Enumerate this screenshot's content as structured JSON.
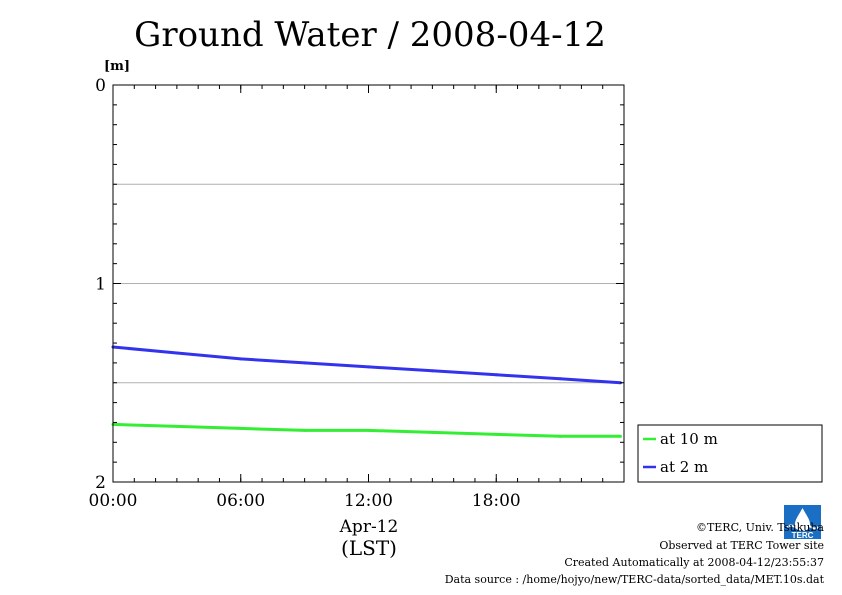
{
  "chart_data": {
    "type": "line",
    "title": "Ground Water / 2008-04-12",
    "ylabel_unit": "[m]",
    "y_inverted": true,
    "ylim": [
      0,
      2
    ],
    "yticks": [
      "0",
      "1",
      "2"
    ],
    "y_grid": [
      0.5,
      1.0,
      1.5
    ],
    "xlim": [
      "2008-04-12 00:00",
      "2008-04-13 00:00"
    ],
    "xticks": [
      {
        "x": "2008-04-12 00:00",
        "label": "00:00"
      },
      {
        "x": "2008-04-12 06:00",
        "label": "06:00"
      },
      {
        "x": "2008-04-12 12:00",
        "label": "12:00"
      },
      {
        "x": "2008-04-12 18:00",
        "label": "18:00"
      }
    ],
    "xdate_label": "Apr-12",
    "xlabel": "(LST)",
    "legend_position": "right",
    "series": [
      {
        "name": "at 10 m",
        "color": "#33ee33",
        "x": [
          "2008-04-12 00:00",
          "2008-04-12 03:00",
          "2008-04-12 06:00",
          "2008-04-12 09:00",
          "2008-04-12 12:00",
          "2008-04-12 15:00",
          "2008-04-12 18:00",
          "2008-04-12 21:00",
          "2008-04-12 23:50"
        ],
        "values": [
          1.71,
          1.72,
          1.73,
          1.74,
          1.74,
          1.75,
          1.76,
          1.77,
          1.77
        ]
      },
      {
        "name": "at 2 m",
        "color": "#3333ee",
        "x": [
          "2008-04-12 00:00",
          "2008-04-12 03:00",
          "2008-04-12 06:00",
          "2008-04-12 09:00",
          "2008-04-12 12:00",
          "2008-04-12 15:00",
          "2008-04-12 18:00",
          "2008-04-12 21:00",
          "2008-04-12 23:50"
        ],
        "values": [
          1.32,
          1.35,
          1.38,
          1.4,
          1.42,
          1.44,
          1.46,
          1.48,
          1.5
        ]
      }
    ]
  },
  "footer": {
    "copyright": "©TERC, Univ. Tsukuba",
    "observed": "Observed at TERC Tower site",
    "created": "Created Automatically at 2008-04-12/23:55:37",
    "source": "Data source : /home/hojyo/new/TERC-data/sorted_data/MET.10s.dat"
  },
  "logo": {
    "icon": "terc-logo",
    "text": "TERC",
    "color": "#1a6fc4"
  }
}
